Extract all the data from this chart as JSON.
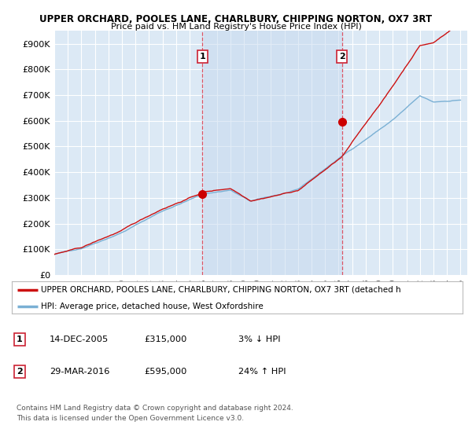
{
  "title1": "UPPER ORCHARD, POOLES LANE, CHARLBURY, CHIPPING NORTON, OX7 3RT",
  "title2": "Price paid vs. HM Land Registry's House Price Index (HPI)",
  "ylabel_ticks": [
    "£0",
    "£100K",
    "£200K",
    "£300K",
    "£400K",
    "£500K",
    "£600K",
    "£700K",
    "£800K",
    "£900K"
  ],
  "ytick_values": [
    0,
    100000,
    200000,
    300000,
    400000,
    500000,
    600000,
    700000,
    800000,
    900000
  ],
  "ylim": [
    0,
    950000
  ],
  "xlim_start": 1995.0,
  "xlim_end": 2025.5,
  "background_color": "#dce9f5",
  "grid_color": "#ffffff",
  "sale1_x": 2005.95,
  "sale1_y": 315000,
  "sale1_label": "1",
  "sale2_x": 2016.25,
  "sale2_y": 595000,
  "sale2_label": "2",
  "vline_color": "#dd4455",
  "sale_marker_color": "#cc0000",
  "hpi_line_color": "#7ab0d4",
  "price_line_color": "#cc1111",
  "legend1_label": "UPPER ORCHARD, POOLES LANE, CHARLBURY, CHIPPING NORTON, OX7 3RT (detached h",
  "legend2_label": "HPI: Average price, detached house, West Oxfordshire",
  "table_rows": [
    {
      "num": "1",
      "date": "14-DEC-2005",
      "price": "£315,000",
      "hpi": "3% ↓ HPI"
    },
    {
      "num": "2",
      "date": "29-MAR-2016",
      "price": "£595,000",
      "hpi": "24% ↑ HPI"
    }
  ],
  "footer": "Contains HM Land Registry data © Crown copyright and database right 2024.\nThis data is licensed under the Open Government Licence v3.0."
}
